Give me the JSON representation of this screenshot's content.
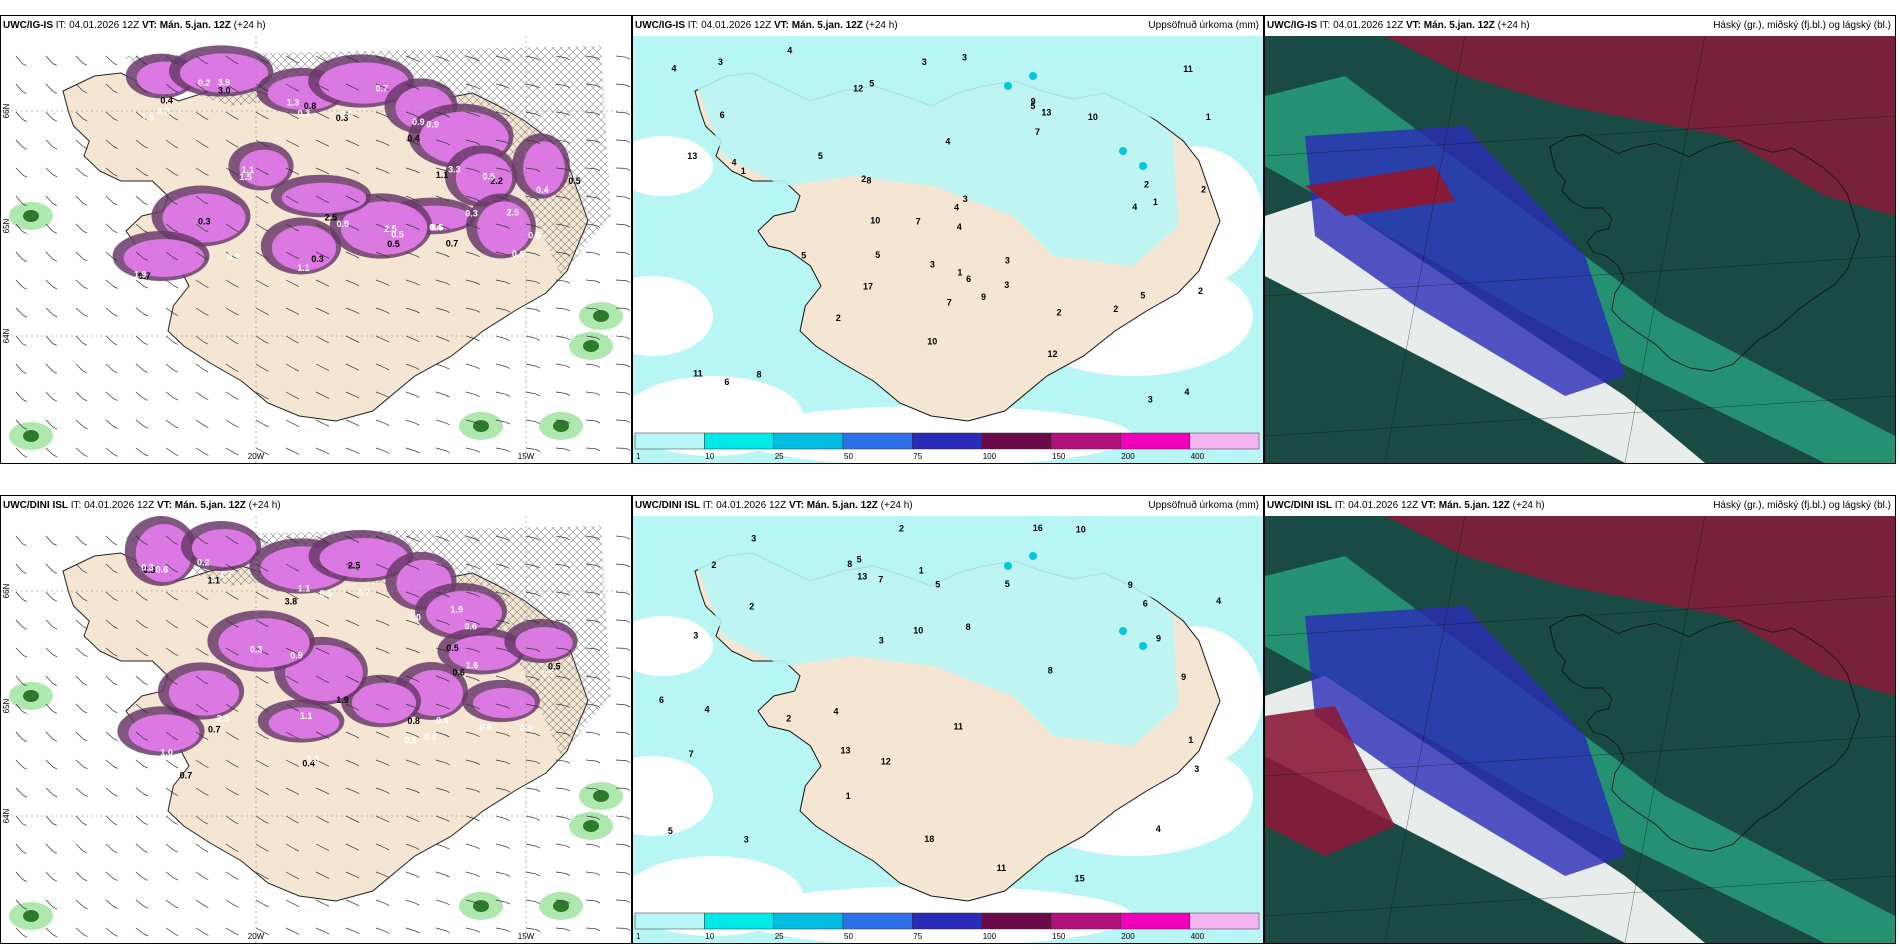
{
  "panels": [
    {
      "model": "UWC/IG-IS",
      "it_label": "IT:",
      "it": "04.01.2026 12Z",
      "vt_label": "VT:",
      "vt": "Mán. 5.jan. 12Z",
      "lead": "(+24 h)",
      "right": "",
      "type": "snow",
      "lon_labels": [
        "20W",
        "15W"
      ],
      "lat_labels": [
        "66N",
        "65N",
        "64N"
      ],
      "values": [
        "0.4",
        "0.2",
        "0.3",
        "0.3",
        "0.9",
        "3.3",
        "2.2",
        "0.6",
        "0.5",
        "2.5",
        "1.1",
        "0.9",
        "0.7",
        "0.6",
        "0.4",
        "0.3",
        "1.5",
        "3.9",
        "0.8",
        "0.5",
        "0.9",
        "1.1",
        "0.3",
        "0.4",
        "0.5",
        "0.9",
        "1.5",
        "0.3",
        "1.9",
        "0.6",
        "0.5",
        "1.1",
        "0.2",
        "3.0",
        "1.3",
        "0.7",
        "0.4",
        "0.5",
        "2.5",
        "0.7",
        "2.5"
      ]
    },
    {
      "model": "UWC/IG-IS",
      "it_label": "IT:",
      "it": "04.01.2026 12Z",
      "vt_label": "VT:",
      "vt": "Mán. 5.jan. 12Z",
      "lead": "(+24 h)",
      "right": "Uppsöfnuð úrkoma (mm)",
      "type": "precip",
      "colorbar_ticks": [
        "1",
        "10",
        "25",
        "50",
        "75",
        "100",
        "150",
        "200",
        "400"
      ],
      "colorbar_colors": [
        "#b8f5f5",
        "#00e8e8",
        "#00bce0",
        "#2f6fe8",
        "#2a2ab8",
        "#6a0a4a",
        "#b0107a",
        "#f000b8",
        "#f5b4f0"
      ],
      "values": [
        "10",
        "7",
        "5",
        "4",
        "8",
        "6",
        "2",
        "5",
        "4",
        "3",
        "4",
        "2",
        "11",
        "13",
        "7",
        "4",
        "10",
        "12",
        "6",
        "4",
        "5",
        "3",
        "9",
        "2",
        "3",
        "5",
        "17",
        "13",
        "12",
        "9",
        "11",
        "8",
        "5",
        "6",
        "3",
        "2",
        "1",
        "10",
        "2",
        "7",
        "3",
        "4",
        "1",
        "5",
        "3",
        "3",
        "4",
        "2",
        "1",
        "1",
        "2",
        "3",
        "4"
      ]
    },
    {
      "model": "UWC/IG-IS",
      "it_label": "IT:",
      "it": "04.01.2026 12Z",
      "vt_label": "VT:",
      "vt": "Mán. 5.jan. 12Z",
      "lead": "(+24 h)",
      "right": "Háský (gr.), miðský (fj.bl.) og lágský (bl.)",
      "type": "clouds"
    },
    {
      "model": "UWC/DINI ISL",
      "it_label": "IT:",
      "it": "04.01.2026 12Z",
      "vt_label": "VT:",
      "vt": "Mán. 5.jan. 12Z",
      "lead": "(+24 h)",
      "right": "",
      "type": "snow",
      "lon_labels": [
        "20W",
        "15W"
      ],
      "lat_labels": [
        "66N",
        "65N",
        "64N"
      ],
      "values": [
        "0.3",
        "0.2",
        "1.1",
        "2.5",
        "3.0",
        "0.6",
        "0.6",
        "0.4",
        "0.5",
        "1.9",
        "0.3",
        "2.3",
        "0.7",
        "0.9",
        "0.5",
        "0.4",
        "0.6",
        "1.7",
        "3.8",
        "0.7",
        "1.9",
        "0.5",
        "1.6",
        "0.8",
        "0.8",
        "1.1",
        "0.9",
        "0.7",
        "1.0",
        "0.8",
        "0.5",
        "1.3",
        "0.3",
        "1.1",
        "0.5"
      ]
    },
    {
      "model": "UWC/DINI ISL",
      "it_label": "IT:",
      "it": "04.01.2026 12Z",
      "vt_label": "VT:",
      "vt": "Mán. 5.jan. 12Z",
      "lead": "(+24 h)",
      "right": "Uppsöfnuð úrkoma (mm)",
      "type": "precip",
      "colorbar_ticks": [
        "1",
        "10",
        "25",
        "50",
        "75",
        "100",
        "150",
        "200",
        "400"
      ],
      "colorbar_colors": [
        "#b8f5f5",
        "#00e8e8",
        "#00bce0",
        "#2f6fe8",
        "#2a2ab8",
        "#6a0a4a",
        "#b0107a",
        "#f000b8",
        "#f5b4f0"
      ],
      "values": [
        "2",
        "3",
        "9",
        "5",
        "4",
        "8",
        "11",
        "16",
        "7",
        "3",
        "6",
        "13",
        "12",
        "10",
        "18",
        "5",
        "1",
        "2",
        "3",
        "4",
        "10",
        "13",
        "15",
        "11",
        "8",
        "9",
        "6",
        "7",
        "4",
        "3",
        "2",
        "1",
        "5",
        "3",
        "2",
        "1",
        "9",
        "8",
        "4",
        "5"
      ]
    },
    {
      "model": "UWC/DINI ISL",
      "it_label": "IT:",
      "it": "04.01.2026 12Z",
      "vt_label": "VT:",
      "vt": "Mán. 5.jan. 12Z",
      "lead": "(+24 h)",
      "right": "Háský (gr.), miðský (fj.bl.) og lágský (bl.)",
      "type": "clouds"
    }
  ],
  "colors": {
    "land": "#f5e6d3",
    "snow_light": "#e07ae8",
    "snow_dark": "#6a3a6a",
    "rain_light": "#a6e6a6",
    "rain_dark": "#2a7a2a",
    "precip_light": "#b8f5f5",
    "cloud_high": "#1a4a44",
    "cloud_mid": "#3a8a7a",
    "cloud_low": "#2a2ab8",
    "cloud_red": "#8a1a3a"
  }
}
